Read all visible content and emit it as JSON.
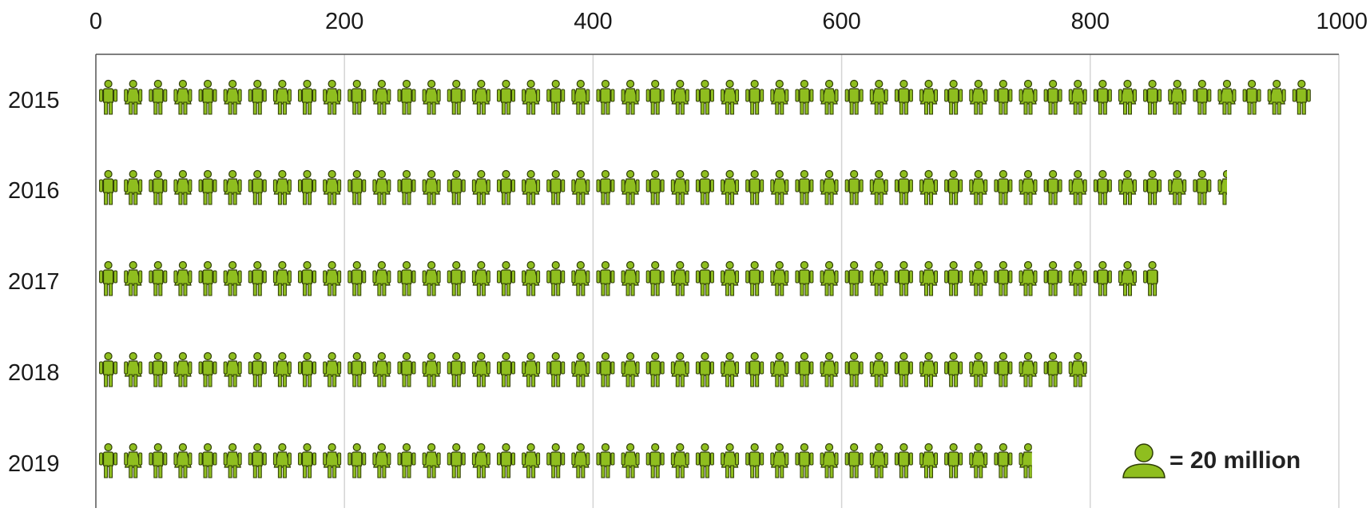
{
  "chart_data": {
    "type": "bar",
    "subtype": "pictogram",
    "categories": [
      "2015",
      "2016",
      "2017",
      "2018",
      "2019"
    ],
    "values": [
      980,
      910,
      856,
      800,
      754
    ],
    "unit_per_icon": 20,
    "legend": {
      "label": "= 20 million",
      "placement": "bottom-right"
    },
    "xlim": [
      0,
      1000
    ],
    "xticks": [
      "0",
      "200",
      "400",
      "600",
      "800",
      "1000"
    ],
    "xtick_values": [
      0,
      200,
      400,
      600,
      800,
      1000
    ],
    "grid": true,
    "title": "",
    "xlabel": "",
    "ylabel": "",
    "colors": {
      "icon_fill": "#8fbe1f",
      "icon_stroke": "#2f3d06",
      "grid": "#d4d4d4",
      "axis": "#555555"
    }
  }
}
